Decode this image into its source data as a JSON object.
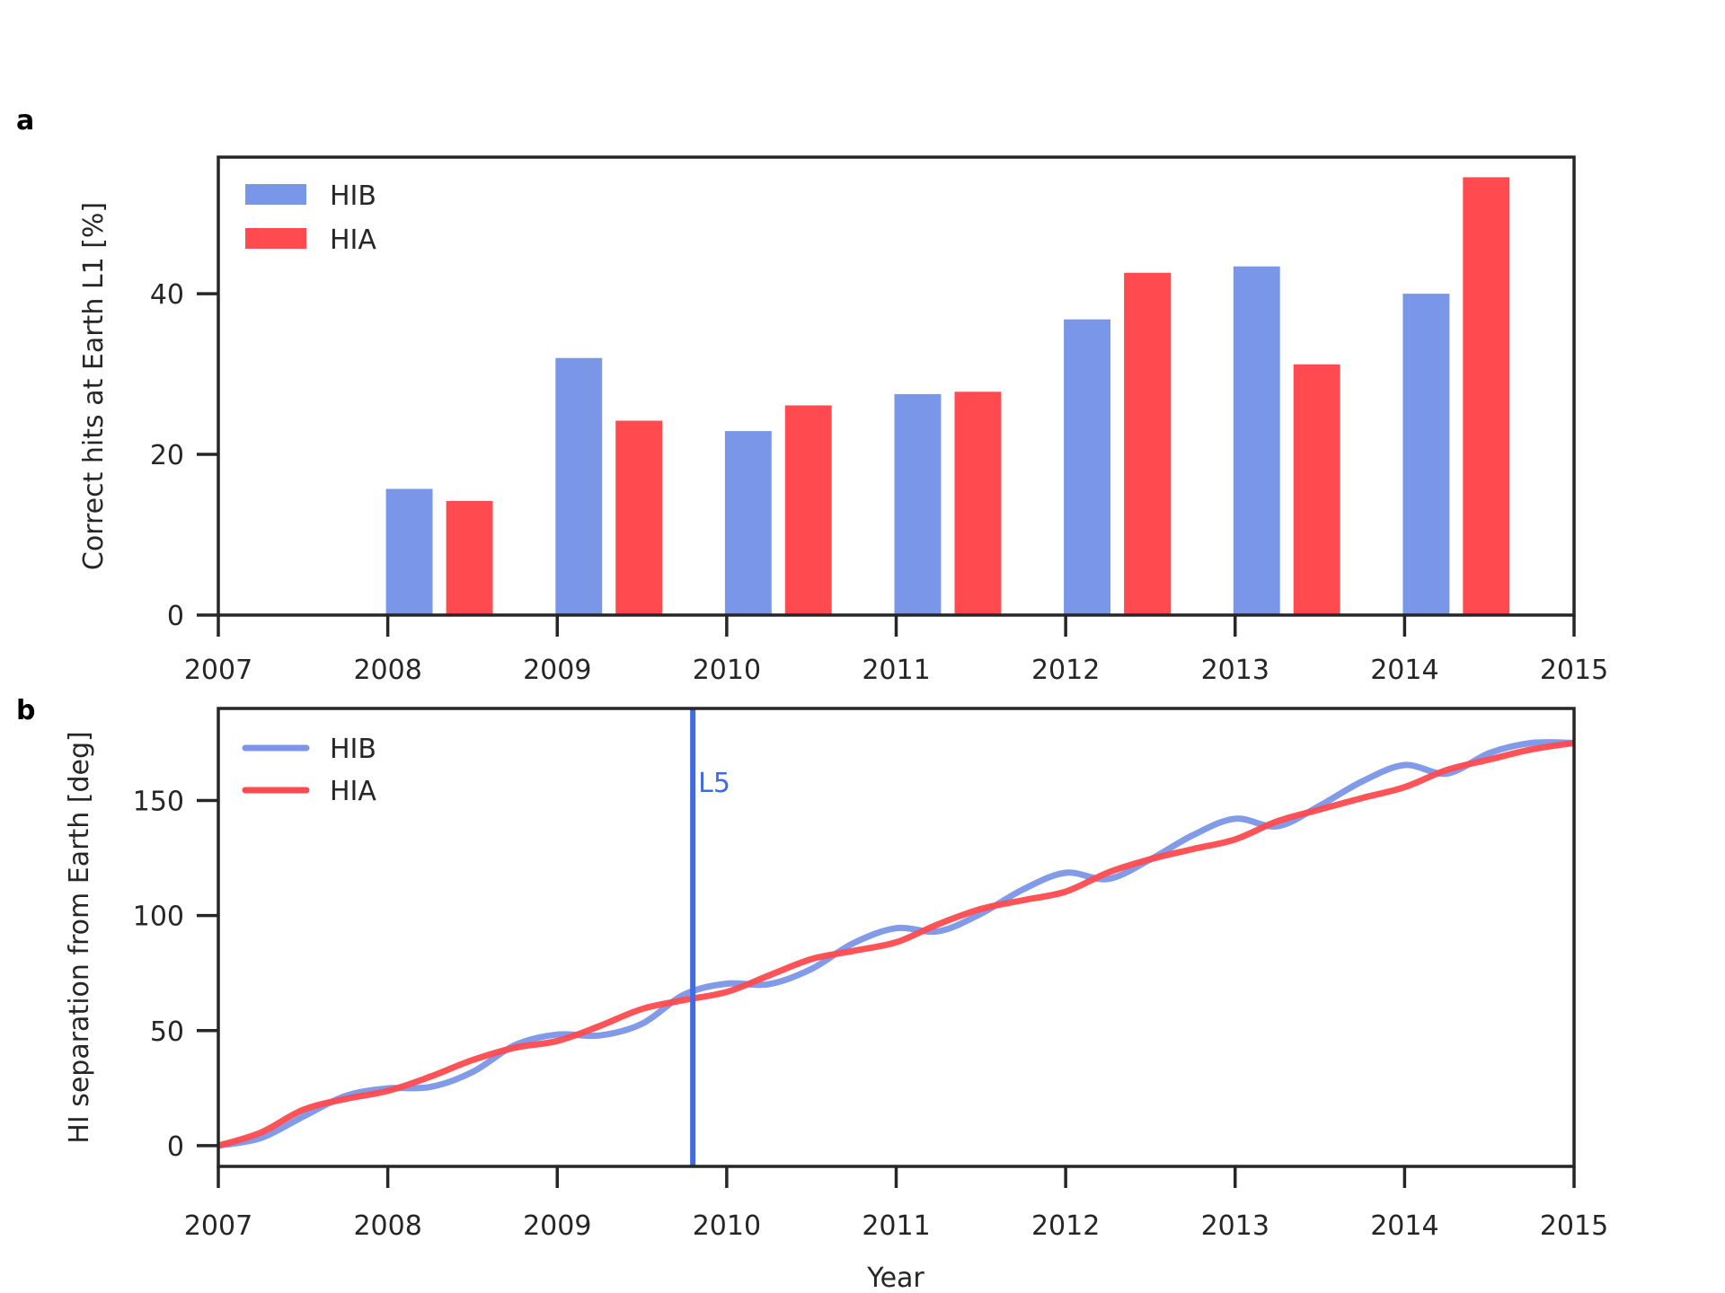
{
  "colors": {
    "hib": "#7a96e8",
    "hia": "#ff4a4f",
    "l5_line": "#4169e1",
    "axes": "#262626"
  },
  "panel_a": {
    "letter": "a"
  },
  "panel_b": {
    "letter": "b"
  },
  "chart_data": [
    {
      "type": "bar",
      "categories": [
        "2008",
        "2009",
        "2010",
        "2011",
        "2012",
        "2013",
        "2014"
      ],
      "series": [
        {
          "name": "HIB",
          "values": [
            15.7,
            32.0,
            22.9,
            27.5,
            36.8,
            43.4,
            40.0
          ]
        },
        {
          "name": "HIA",
          "values": [
            14.2,
            24.2,
            26.1,
            27.8,
            42.6,
            31.2,
            54.5
          ]
        }
      ],
      "xlabel": "",
      "ylabel": "Correct hits at Earth L1 [%]",
      "xlim": [
        2007,
        2015
      ],
      "ylim": [
        0,
        57
      ],
      "xticks": [
        "2007",
        "2008",
        "2009",
        "2010",
        "2011",
        "2012",
        "2013",
        "2014",
        "2015"
      ],
      "yticks": [
        "0",
        "20",
        "40"
      ],
      "legend_placement": "top-left",
      "grid": false
    },
    {
      "type": "line",
      "x": [
        2007.0,
        2007.25,
        2007.5,
        2007.75,
        2008.0,
        2008.25,
        2008.5,
        2008.75,
        2009.0,
        2009.25,
        2009.5,
        2009.75,
        2010.0,
        2010.25,
        2010.5,
        2010.75,
        2011.0,
        2011.25,
        2011.5,
        2011.75,
        2012.0,
        2012.25,
        2012.5,
        2012.75,
        2013.0,
        2013.25,
        2013.5,
        2013.75,
        2014.0,
        2014.25,
        2014.5,
        2014.75,
        2015.0
      ],
      "series": [
        {
          "name": "HIB",
          "values": [
            0.0,
            3.3,
            12.6,
            21.6,
            24.9,
            25.5,
            32.0,
            43.7,
            48.3,
            47.9,
            53.0,
            65.7,
            70.4,
            70.2,
            76.8,
            88.1,
            94.5,
            93.2,
            100.8,
            111.4,
            118.6,
            115.9,
            124.4,
            134.9,
            142.1,
            138.8,
            147.8,
            158.3,
            165.4,
            161.7,
            170.6,
            175.0,
            175.0
          ]
        },
        {
          "name": "HIA",
          "values": [
            0.0,
            5.7,
            15.6,
            20.3,
            23.8,
            30.0,
            37.2,
            42.6,
            45.5,
            52.0,
            59.4,
            63.3,
            66.8,
            74.0,
            81.1,
            84.7,
            88.4,
            96.3,
            102.9,
            106.7,
            110.4,
            118.7,
            124.5,
            128.9,
            133.1,
            141.0,
            146.1,
            151.1,
            155.8,
            163.3,
            167.8,
            172.2,
            175.0
          ]
        }
      ],
      "annotation": {
        "text": "L5",
        "x": 2009.8
      },
      "xlabel": "Year",
      "ylabel": "HI separation from Earth [deg]",
      "xlim": [
        2007,
        2015
      ],
      "ylim": [
        -9,
        190
      ],
      "xticks": [
        "2007",
        "2008",
        "2009",
        "2010",
        "2011",
        "2012",
        "2013",
        "2014",
        "2015"
      ],
      "yticks": [
        "0",
        "50",
        "100",
        "150"
      ],
      "legend_placement": "top-left",
      "grid": false
    }
  ]
}
